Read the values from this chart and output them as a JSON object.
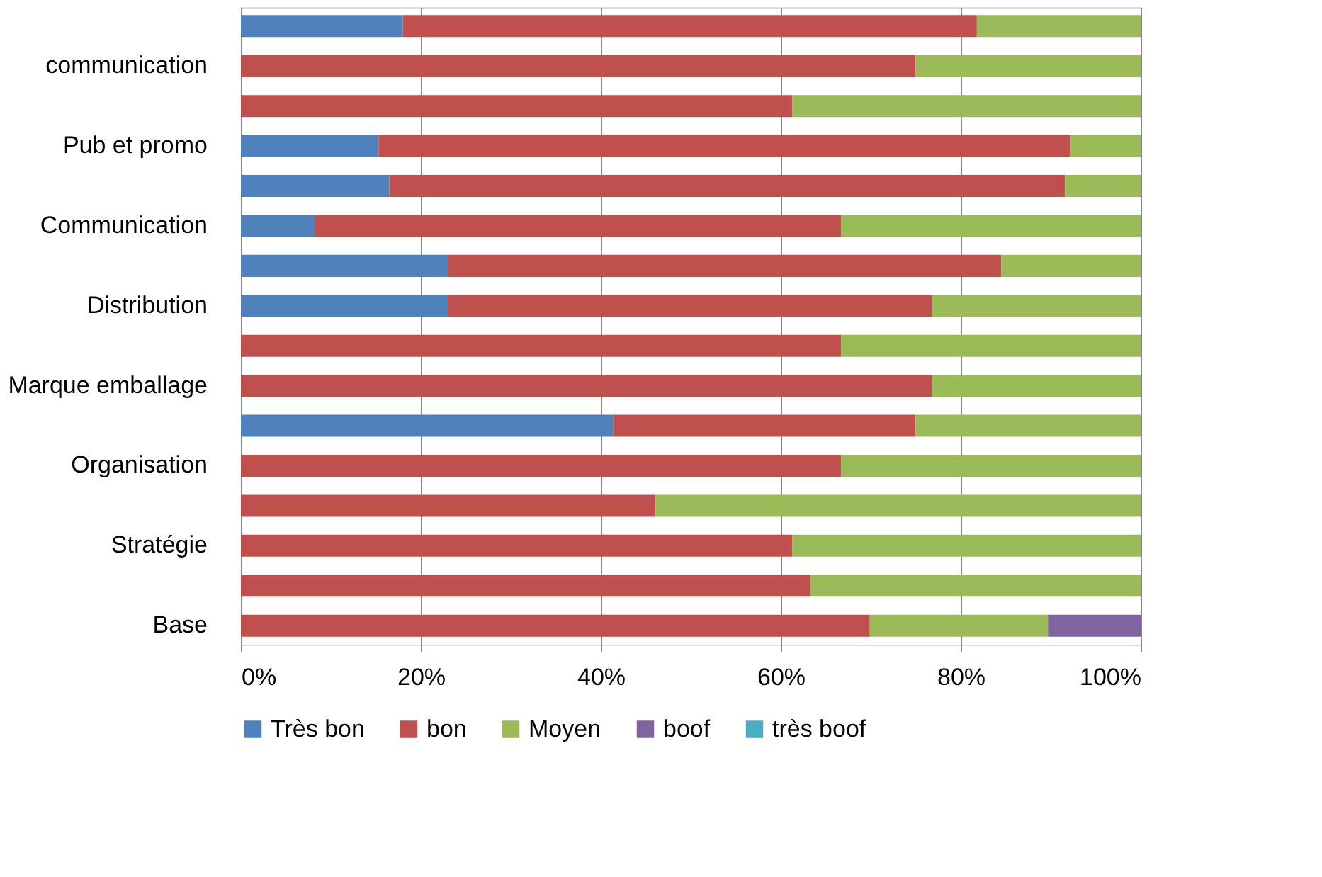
{
  "chart_data": {
    "type": "bar",
    "orientation": "horizontal",
    "stacked": true,
    "categories": [
      null,
      "communication",
      null,
      "Pub et promo",
      null,
      "Communication",
      null,
      "Distribution",
      null,
      "Marque emballage",
      null,
      "Organisation",
      null,
      "Stratégie",
      null,
      "Base"
    ],
    "series": [
      {
        "name": "Très bon",
        "color": "#4f81bd",
        "values": [
          18.0,
          0,
          0,
          15.3,
          16.5,
          8.2,
          23.0,
          23.0,
          0,
          0,
          41.4,
          0,
          0,
          0,
          0,
          0
        ]
      },
      {
        "name": "bon",
        "color": "#c0504d",
        "values": [
          63.8,
          75.0,
          61.3,
          76.9,
          75.1,
          58.5,
          61.5,
          53.8,
          66.7,
          76.8,
          33.6,
          66.7,
          46.1,
          61.3,
          63.3,
          69.9
        ]
      },
      {
        "name": "Moyen",
        "color": "#9bbb59",
        "values": [
          18.2,
          25.0,
          38.7,
          7.8,
          8.4,
          33.3,
          15.5,
          23.2,
          33.3,
          23.2,
          25.0,
          33.3,
          53.9,
          38.7,
          36.7,
          19.8
        ]
      },
      {
        "name": "boof",
        "color": "#8064a2",
        "values": [
          0,
          0,
          0,
          0,
          0,
          0,
          0,
          0,
          0,
          0,
          0,
          0,
          0,
          0,
          0,
          10.3
        ]
      },
      {
        "name": "très boof",
        "color": "#4bacc6",
        "values": [
          0,
          0,
          0,
          0,
          0,
          0,
          0,
          0,
          0,
          0,
          0,
          0,
          0,
          0,
          0,
          0
        ]
      }
    ],
    "xlim": [
      0,
      100
    ],
    "xticks": [
      {
        "value": 0,
        "label": "0%"
      },
      {
        "value": 20,
        "label": "20%"
      },
      {
        "value": 40,
        "label": "40%"
      },
      {
        "value": 60,
        "label": "60%"
      },
      {
        "value": 80,
        "label": "80%"
      },
      {
        "value": 100,
        "label": "100%"
      }
    ],
    "grid": "x",
    "legend": "bottom"
  }
}
